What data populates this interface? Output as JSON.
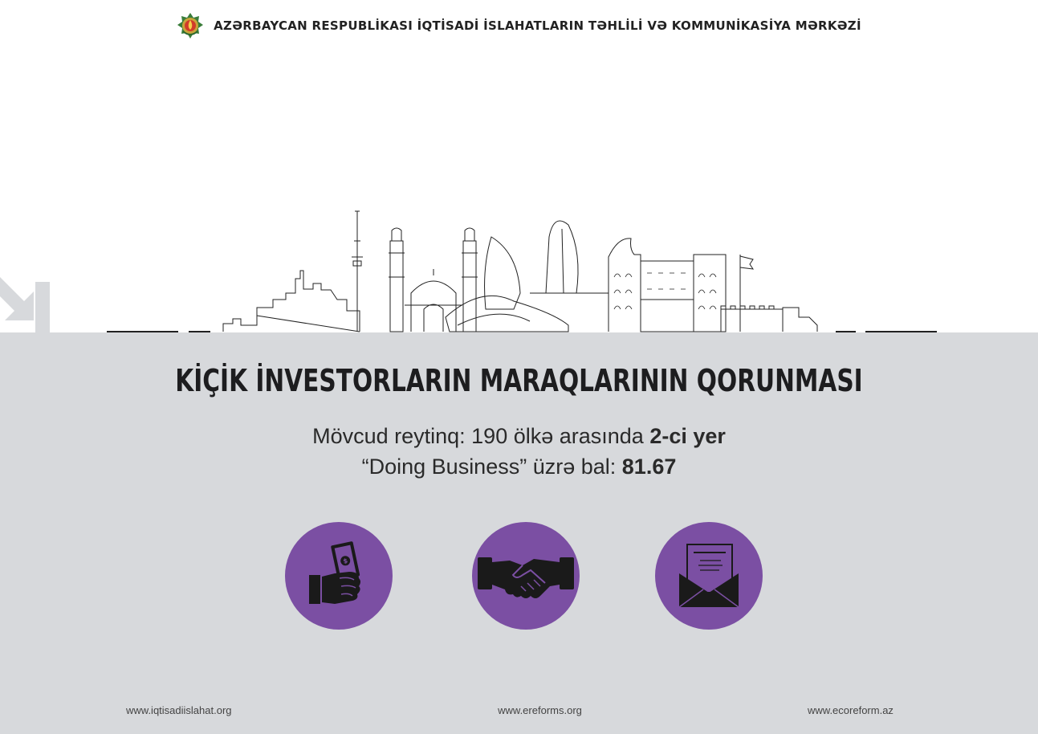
{
  "header": {
    "organization": "AZƏRBAYCAN RESPUBLİKASI İQTİSADİ İSLAHATLARIN TƏHLİLİ VƏ KOMMUNİKASİYA MƏRKƏZİ",
    "emblem_icon": "azerbaijan-emblem-icon"
  },
  "main": {
    "title": "KİÇİK İNVESTORLARIN MARAQLARININ QORUNMASI",
    "rating_prefix": "Mövcud reytinq: 190 ölkə arasında ",
    "rating_value": "2-ci yer",
    "score_prefix": "“Doing Business” üzrə bal: ",
    "score_value": "81.67"
  },
  "icons": [
    {
      "name": "hand-with-money-icon"
    },
    {
      "name": "handshake-icon"
    },
    {
      "name": "envelope-document-icon"
    }
  ],
  "footer": {
    "link1": "www.iqtisadiislahat.org",
    "link2": "www.ereforms.org",
    "link3": "www.ecoreform.az"
  },
  "colors": {
    "accent": "#7b4fa3",
    "panel": "#d7d9dc",
    "text": "#1d1d1f"
  }
}
